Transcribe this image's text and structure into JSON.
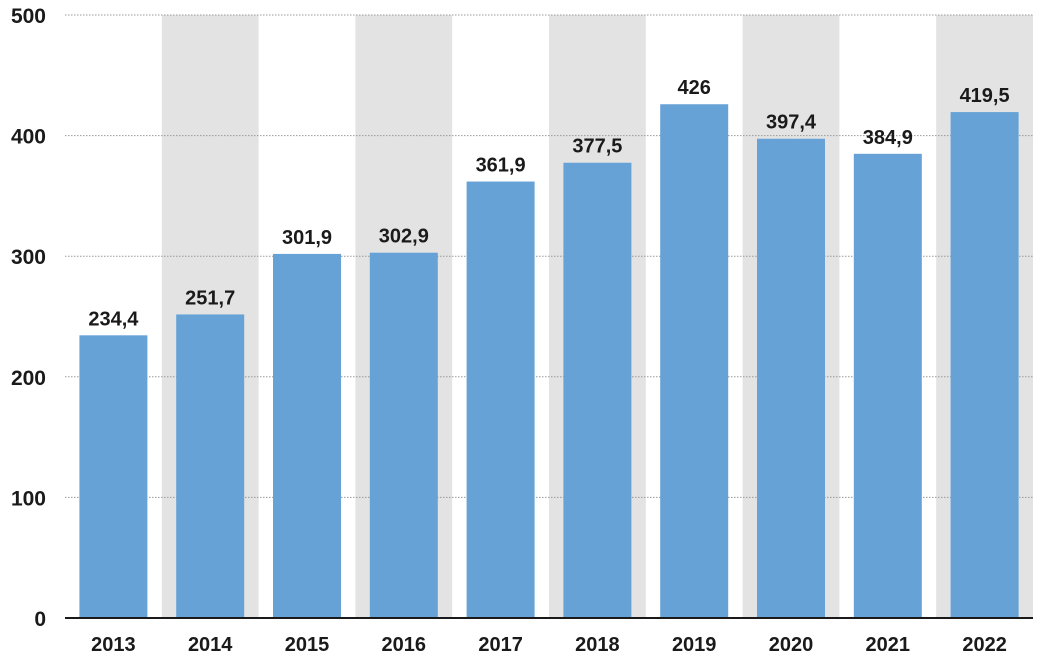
{
  "chart_data": {
    "type": "bar",
    "title": "",
    "xlabel": "",
    "ylabel": "",
    "categories": [
      "2013",
      "2014",
      "2015",
      "2016",
      "2017",
      "2018",
      "2019",
      "2020",
      "2021",
      "2022"
    ],
    "values": [
      234.4,
      251.7,
      301.9,
      302.9,
      361.9,
      377.5,
      426,
      397.4,
      384.9,
      419.5
    ],
    "value_labels": [
      "234,4",
      "251,7",
      "301,9",
      "302,9",
      "361,9",
      "377,5",
      "426",
      "397,4",
      "384,9",
      "419,5"
    ],
    "ylim": [
      0,
      500
    ],
    "yticks": [
      "0",
      "100",
      "200",
      "300",
      "400",
      "500"
    ],
    "grid": true,
    "alternating_column_shading": true,
    "colors": {
      "bar": "#66a2d6",
      "band": "#e3e3e3",
      "grid": "#999999",
      "axis": "#1a1a1a"
    }
  }
}
